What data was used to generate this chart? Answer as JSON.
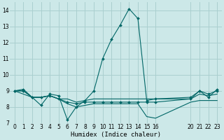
{
  "title": "",
  "xlabel": "Humidex (Indice chaleur)",
  "ylabel": "",
  "bg_color": "#cce8e8",
  "grid_color": "#aacfcf",
  "line_color": "#006666",
  "ylim": [
    7,
    14.5
  ],
  "xlim": [
    -0.5,
    23.5
  ],
  "yticks": [
    7,
    8,
    9,
    10,
    11,
    12,
    13,
    14
  ],
  "xtick_positions": [
    0,
    1,
    2,
    3,
    4,
    5,
    6,
    7,
    8,
    9,
    10,
    11,
    12,
    13,
    14,
    15,
    16,
    20,
    21,
    22,
    23
  ],
  "xtick_labels": [
    "0",
    "1",
    "2",
    "3",
    "4",
    "5",
    "6",
    "7",
    "8",
    "9",
    "10",
    "11",
    "12",
    "13",
    "14",
    "15",
    "16",
    "20",
    "21",
    "22",
    "23"
  ],
  "line1_x": [
    0,
    1,
    2,
    3,
    4,
    5,
    6,
    7,
    8,
    9,
    10,
    11,
    12,
    13,
    14,
    15,
    16,
    20,
    21,
    22,
    23
  ],
  "line1_y": [
    9.0,
    9.1,
    8.6,
    8.1,
    8.8,
    8.7,
    7.2,
    8.0,
    8.4,
    9.0,
    11.0,
    12.2,
    13.1,
    14.1,
    13.5,
    8.4,
    8.5,
    8.6,
    9.0,
    8.8,
    9.0
  ],
  "line2_x": [
    0,
    1,
    2,
    3,
    4,
    5,
    6,
    7,
    8,
    9,
    10,
    11,
    12,
    13,
    14,
    15,
    16,
    20,
    21,
    22,
    23
  ],
  "line2_y": [
    9.0,
    9.0,
    8.6,
    8.6,
    8.7,
    8.5,
    8.5,
    8.3,
    8.4,
    8.5,
    8.5,
    8.5,
    8.5,
    8.5,
    8.5,
    8.5,
    8.5,
    8.5,
    8.8,
    8.7,
    8.8
  ],
  "line3_x": [
    0,
    1,
    2,
    3,
    4,
    5,
    6,
    7,
    8,
    9,
    10,
    11,
    12,
    13,
    14,
    15,
    16,
    20,
    21,
    22,
    23
  ],
  "line3_y": [
    9.0,
    9.0,
    8.6,
    8.6,
    8.7,
    8.5,
    8.3,
    8.2,
    8.3,
    8.3,
    8.3,
    8.3,
    8.3,
    8.3,
    8.3,
    8.3,
    8.3,
    8.5,
    9.0,
    8.6,
    9.1
  ],
  "line4_x": [
    0,
    2,
    3,
    4,
    5,
    6,
    7,
    8,
    9,
    10,
    11,
    12,
    13,
    14,
    15,
    16,
    20,
    21,
    22,
    23
  ],
  "line4_y": [
    9.0,
    8.6,
    8.6,
    8.7,
    8.5,
    8.2,
    8.0,
    8.1,
    8.2,
    8.2,
    8.2,
    8.2,
    8.2,
    8.2,
    7.4,
    7.3,
    8.3,
    8.4,
    8.4,
    8.4
  ]
}
